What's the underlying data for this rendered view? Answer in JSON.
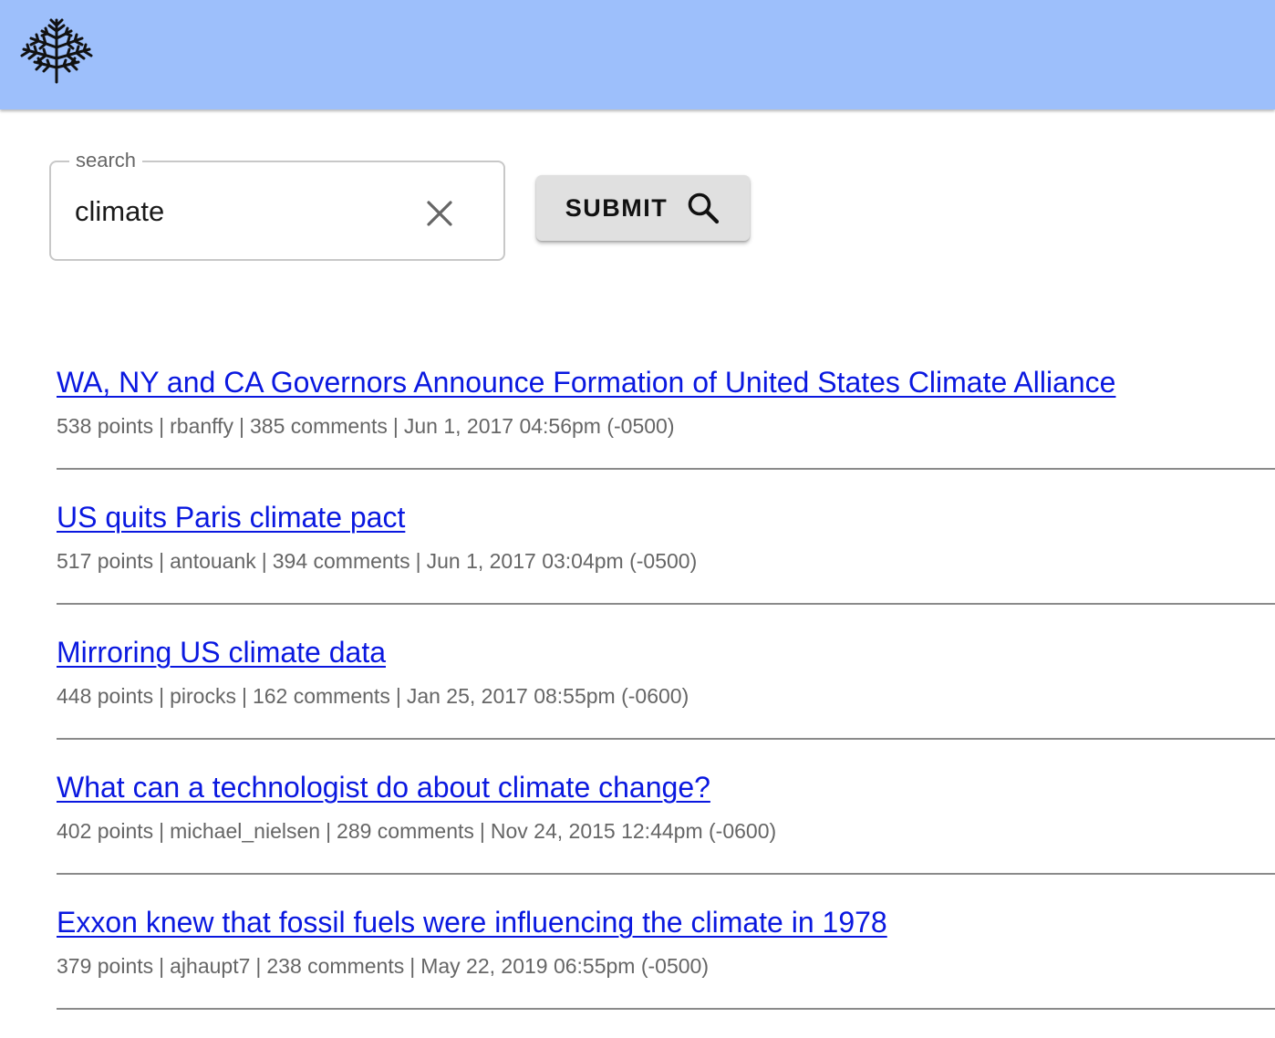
{
  "header": {
    "logo_icon": "pine-tree-icon",
    "background": "#9dbffb"
  },
  "search": {
    "legend": "search",
    "value": "climate",
    "clear_icon": "close-icon"
  },
  "submit": {
    "label": "SUBMIT",
    "icon": "search-icon"
  },
  "link_color": "#0a18e0",
  "results": [
    {
      "title": "WA, NY and CA Governors Announce Formation of United States Climate Alliance",
      "points": "538 points",
      "author": "rbanffy",
      "comments": "385 comments",
      "date": "Jun 1, 2017 04:56pm (-0500)"
    },
    {
      "title": "US quits Paris climate pact",
      "points": "517 points",
      "author": "antouank",
      "comments": "394 comments",
      "date": "Jun 1, 2017 03:04pm (-0500)"
    },
    {
      "title": "Mirroring US climate data",
      "points": "448 points",
      "author": "pirocks",
      "comments": "162 comments",
      "date": "Jan 25, 2017 08:55pm (-0600)"
    },
    {
      "title": "What can a technologist do about climate change?",
      "points": "402 points",
      "author": "michael_nielsen",
      "comments": "289 comments",
      "date": "Nov 24, 2015 12:44pm (-0600)"
    },
    {
      "title": "Exxon knew that fossil fuels were influencing the climate in 1978",
      "points": "379 points",
      "author": "ajhaupt7",
      "comments": "238 comments",
      "date": "May 22, 2019 06:55pm (-0500)"
    }
  ]
}
